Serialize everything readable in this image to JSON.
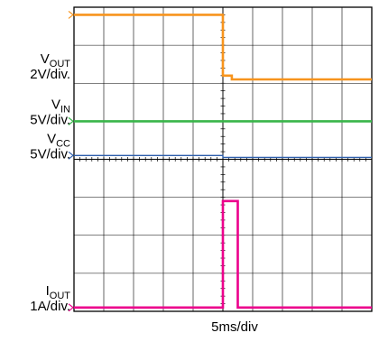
{
  "chart_data": {
    "type": "line",
    "title": "",
    "xlabel": "5ms/div",
    "x_divisions": 10,
    "y_divisions": 8,
    "x_range_ms": [
      0,
      50
    ],
    "grid": true,
    "trigger_time_ms": 25,
    "channels": [
      {
        "name": "VOUT",
        "label_main": "V",
        "label_sub": "OUT",
        "scale": "2V/div.",
        "color": "#f7941d",
        "points": [
          [
            0,
            7.8
          ],
          [
            25,
            7.8
          ],
          [
            25,
            6.2
          ],
          [
            26.5,
            6.2
          ],
          [
            26.5,
            6.1
          ],
          [
            50,
            6.1
          ]
        ]
      },
      {
        "name": "VIN",
        "label_main": "V",
        "label_sub": "IN",
        "scale": "5V/div.",
        "color": "#39b54a",
        "points": [
          [
            0,
            5.0
          ],
          [
            50,
            5.0
          ]
        ]
      },
      {
        "name": "VCC",
        "label_main": "V",
        "label_sub": "CC",
        "scale": "5V/div.",
        "color": "#2e5fac",
        "points": [
          [
            0,
            4.1
          ],
          [
            25,
            4.1
          ],
          [
            25,
            4.05
          ],
          [
            50,
            4.05
          ]
        ]
      },
      {
        "name": "IOUT",
        "label_main": "I",
        "label_sub": "OUT",
        "scale": "1A/div.",
        "color": "#ec008c",
        "points": [
          [
            0,
            0.1
          ],
          [
            25,
            0.1
          ],
          [
            25,
            2.9
          ],
          [
            27.5,
            2.9
          ],
          [
            27.5,
            0.1
          ],
          [
            50,
            0.1
          ]
        ]
      }
    ]
  }
}
